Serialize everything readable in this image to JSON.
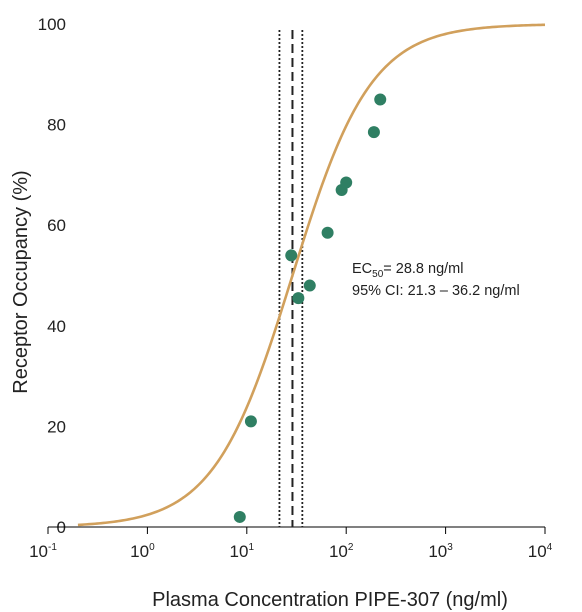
{
  "chart_data": {
    "type": "scatter",
    "xlabel": "Plasma Concentration PIPE-307 (ng/ml)",
    "ylabel": "Receptor Occupancy (%)",
    "x_scale": "log",
    "xlim": [
      0.1,
      10000
    ],
    "ylim": [
      0,
      100
    ],
    "x_ticks": [
      0.1,
      1,
      10,
      100,
      1000,
      10000
    ],
    "x_tick_labels": [
      {
        "base": "10",
        "exp": "-1"
      },
      {
        "base": "10",
        "exp": "0"
      },
      {
        "base": "10",
        "exp": "1"
      },
      {
        "base": "10",
        "exp": "2"
      },
      {
        "base": "10",
        "exp": "3"
      },
      {
        "base": "10",
        "exp": "4"
      }
    ],
    "y_ticks": [
      0,
      20,
      40,
      60,
      80,
      100
    ],
    "y_tick_labels": [
      "0",
      "20",
      "40",
      "60",
      "80",
      "100"
    ],
    "grid": false,
    "points": [
      {
        "x": 8.5,
        "y": 2
      },
      {
        "x": 11,
        "y": 21
      },
      {
        "x": 28,
        "y": 54
      },
      {
        "x": 33,
        "y": 45.5
      },
      {
        "x": 43,
        "y": 48
      },
      {
        "x": 65,
        "y": 58.5
      },
      {
        "x": 90,
        "y": 67
      },
      {
        "x": 100,
        "y": 68.5
      },
      {
        "x": 190,
        "y": 78.5
      },
      {
        "x": 220,
        "y": 85
      }
    ],
    "fit_curve": {
      "model": "sigmoid",
      "ec50": 28.8,
      "hill": 1.1,
      "bottom": 0,
      "top": 100
    },
    "reference_lines": [
      {
        "x": 28.8,
        "style": "dashed"
      },
      {
        "x": 21.3,
        "style": "dotted"
      },
      {
        "x": 36.2,
        "style": "dotted"
      }
    ],
    "annotation": {
      "ec_label": "EC",
      "ec_sub": "50",
      "ec_value": "= 28.8 ng/ml",
      "ci_text_a": "95% CI: 21.3",
      "ci_dash": "–",
      "ci_text_b": "36.2 ng/ml"
    },
    "colors": {
      "curve": "#D1A05C",
      "points": "#2F7F63",
      "axis": "#000000",
      "reference_lines": "#222222"
    }
  }
}
